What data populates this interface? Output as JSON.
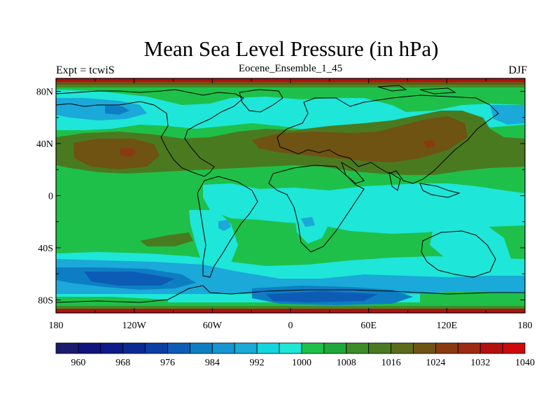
{
  "title": "Mean Sea Level Pressure (in hPa)",
  "left_label": "Expt = tcwiS",
  "center_label": "Eocene_Ensemble_1_45",
  "right_label": "DJF",
  "colors": {
    "c1000": "#1fc04a",
    "c1004": "#21a83c",
    "c1008": "#3e8b28",
    "c1012": "#4a7a20",
    "c1016": "#5b6b1a",
    "c1020": "#6e5313",
    "c1024": "#8a3a10",
    "c992": "#1ee6d8",
    "c996": "#14d6de",
    "c988": "#1aa9d8",
    "c984": "#0e7ec4",
    "c980": "#0c5cb6",
    "c976": "#0a3ea2",
    "c972": "#0a2a92",
    "c1036": "#b41010",
    "coast": "#000000"
  },
  "chart_data": {
    "type": "contour-map",
    "variable": "Mean Sea Level Pressure",
    "units": "hPa",
    "projection": "cylindrical equidistant",
    "lon_range": [
      -180,
      180
    ],
    "lat_range": [
      -90,
      90
    ],
    "x_ticks": [
      "180",
      "120W",
      "60W",
      "0",
      "60E",
      "120E",
      "180"
    ],
    "x_tick_values": [
      -180,
      -120,
      -60,
      0,
      60,
      120,
      180
    ],
    "y_ticks": [
      "80N",
      "40N",
      "0",
      "40S",
      "80S"
    ],
    "y_tick_values": [
      80,
      40,
      0,
      -40,
      -80
    ],
    "colorbar": {
      "colors": [
        "#1a1a6e",
        "#10127e",
        "#0c1a8a",
        "#0a2a92",
        "#0a3ea2",
        "#0c5cb6",
        "#0e7ec4",
        "#1595d2",
        "#1aa9d8",
        "#14d6de",
        "#1ee6d8",
        "#1fc04a",
        "#21a83c",
        "#3e8b28",
        "#4a7a20",
        "#5b6b1a",
        "#6e5313",
        "#8a3a10",
        "#9e2a0f",
        "#b41010",
        "#cc0a0a"
      ],
      "labels": [
        "960",
        "968",
        "976",
        "984",
        "992",
        "1000",
        "1008",
        "1016",
        "1024",
        "1032",
        "1040"
      ]
    }
  }
}
